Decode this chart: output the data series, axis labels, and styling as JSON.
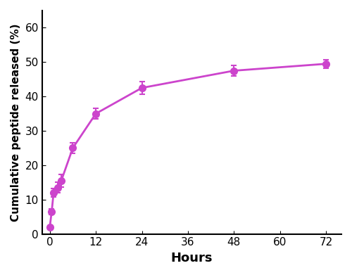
{
  "x": [
    0,
    0.5,
    1,
    2,
    3,
    6,
    12,
    24,
    48,
    72
  ],
  "y": [
    2.0,
    6.5,
    12.0,
    13.5,
    15.5,
    25.0,
    35.0,
    42.5,
    47.5,
    49.5
  ],
  "yerr": [
    0.3,
    0.8,
    1.2,
    1.5,
    1.8,
    1.5,
    1.5,
    1.8,
    1.5,
    1.2
  ],
  "color": "#CC44CC",
  "xlabel": "Hours",
  "ylabel": "Cumulative peptide released (%)",
  "xlim": [
    -2,
    76
  ],
  "ylim": [
    0,
    65
  ],
  "xticks": [
    0,
    12,
    24,
    36,
    48,
    60,
    72
  ],
  "yticks": [
    0,
    10,
    20,
    30,
    40,
    50,
    60
  ],
  "linewidth": 2.0,
  "markersize": 7
}
